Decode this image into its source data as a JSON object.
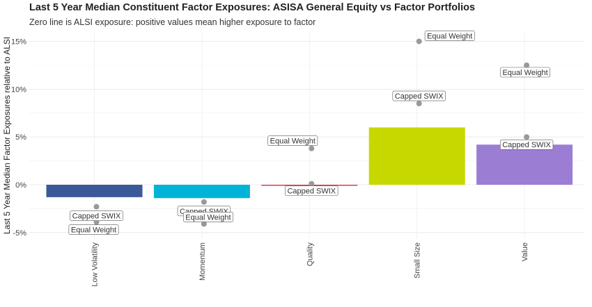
{
  "title": "Last 5 Year Median Constituent Factor Exposures: ASISA General Equity vs Factor Portfolios",
  "subtitle": "Zero line is ALSI exposure: positive values mean higher exposure to factor",
  "chart_data": {
    "type": "bar",
    "title": "Last 5 Year Median Constituent Factor Exposures: ASISA General Equity vs Factor Portfolios",
    "subtitle": "Zero line is ALSI exposure: positive values mean higher exposure to factor",
    "xlabel": "",
    "ylabel": "Last 5 Year Median Factor Exposures relative to ALSI",
    "ylim": [
      -0.055,
      0.16
    ],
    "y_ticks": [
      -0.05,
      0.0,
      0.05,
      0.1,
      0.15
    ],
    "y_tick_labels": [
      "-5%",
      "0%",
      "5%",
      "10%",
      "15%"
    ],
    "grid": true,
    "categories": [
      "Low Volatility",
      "Momentum",
      "Quality",
      "Small Size",
      "Value"
    ],
    "values": [
      -0.013,
      -0.014,
      0.0,
      0.06,
      0.042
    ],
    "bar_colors": [
      "#3b5998",
      "#00b4d8",
      "#e03c4a",
      "#c6d800",
      "#9b7ed4"
    ],
    "series": [
      {
        "name": "ASISA General Equity",
        "values": [
          -0.013,
          -0.014,
          0.0,
          0.06,
          0.042
        ]
      },
      {
        "name": "Capped SWIX",
        "values": [
          -0.023,
          -0.018,
          0.001,
          0.085,
          0.05
        ]
      },
      {
        "name": "Equal Weight",
        "values": [
          -0.039,
          -0.041,
          0.038,
          0.15,
          0.125
        ]
      }
    ],
    "point_color": "#999999"
  }
}
